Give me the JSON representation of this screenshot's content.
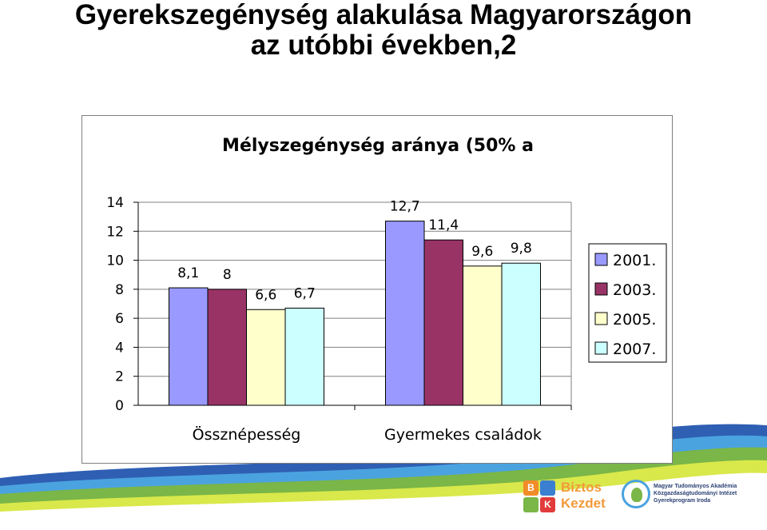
{
  "slide": {
    "title_line1": "Gyerekszegénység alakulása Magyarországon",
    "title_line2": "az utóbbi években,2"
  },
  "chart_data": {
    "type": "bar",
    "title": "Mélyszegénység aránya (50% a",
    "categories": [
      "Össznépesség",
      "Gyermekes családok"
    ],
    "series": [
      {
        "name": "2001.",
        "values": [
          8.1,
          12.7
        ],
        "labels": [
          "8,1",
          "12,7"
        ],
        "color": "#9999ff"
      },
      {
        "name": "2003.",
        "values": [
          8,
          11.4
        ],
        "labels": [
          "8",
          "11,4"
        ],
        "color": "#993366"
      },
      {
        "name": "2005.",
        "values": [
          6.6,
          9.6
        ],
        "labels": [
          "6,6",
          "9,6"
        ],
        "color": "#ffffcc"
      },
      {
        "name": "2007.",
        "values": [
          6.7,
          9.8
        ],
        "labels": [
          "6,7",
          "9,8"
        ],
        "color": "#ccffff"
      }
    ],
    "ylim": [
      0,
      14
    ],
    "yticks": [
      "0",
      "2",
      "4",
      "6",
      "8",
      "10",
      "12",
      "14"
    ],
    "grid": true,
    "legend": "right"
  },
  "footer": {
    "logo1_word1": "Biztos",
    "logo1_word2": "Kezdet",
    "logo1_letter_b": "B",
    "logo1_letter_k": "K",
    "logo2_line1": "Magyar Tudományos Akadémia",
    "logo2_line2": "Közgazdaságtudományi Intézet",
    "logo2_line3": "Gyerekprogram Iroda",
    "wave_colors": [
      "#2f5fb3",
      "#4aa3df",
      "#7ab648",
      "#d9e84a"
    ]
  }
}
